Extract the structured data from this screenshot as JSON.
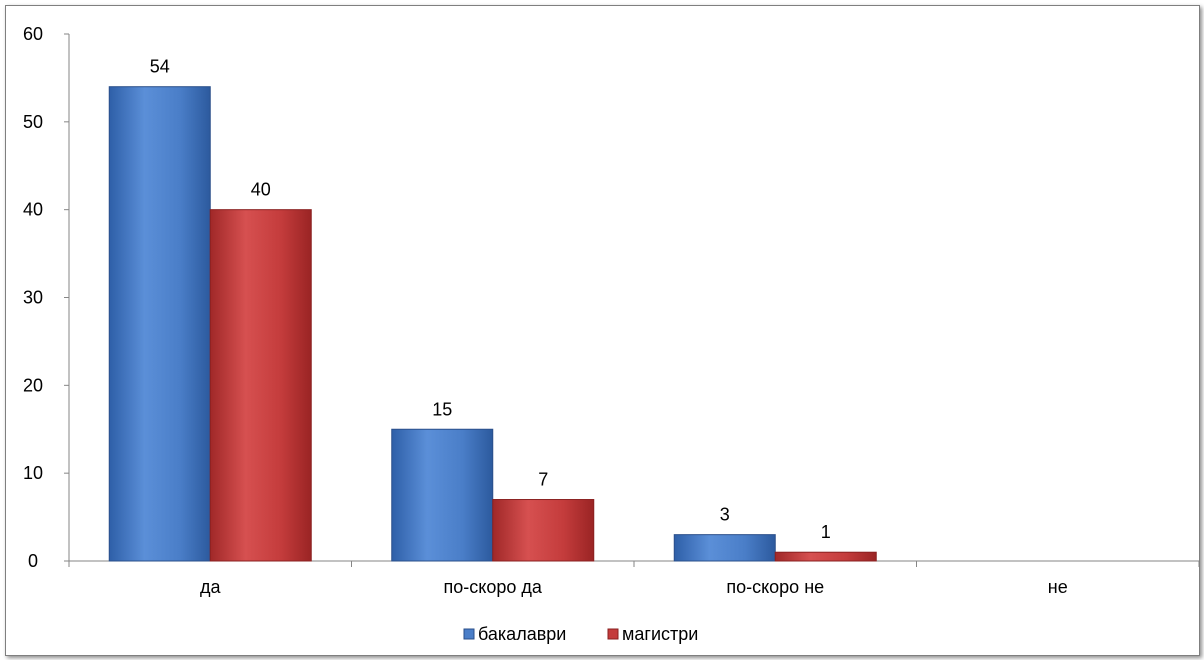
{
  "chart_data": {
    "type": "bar",
    "categories": [
      "да",
      "по-скоро да",
      "по-скоро не",
      "не"
    ],
    "series": [
      {
        "name": "бакалаври",
        "values": [
          54,
          15,
          3,
          0
        ],
        "color": "#4a7ec8"
      },
      {
        "name": "магистри",
        "values": [
          40,
          7,
          1,
          0
        ],
        "color": "#c43c3c"
      }
    ],
    "data_labels": [
      [
        "54",
        "15",
        "3",
        ""
      ],
      [
        "40",
        "7",
        "1",
        ""
      ]
    ],
    "y_ticks": [
      "0",
      "10",
      "20",
      "30",
      "40",
      "50",
      "60"
    ],
    "ylim": [
      0,
      60
    ],
    "grid": false,
    "legend_position": "bottom"
  }
}
